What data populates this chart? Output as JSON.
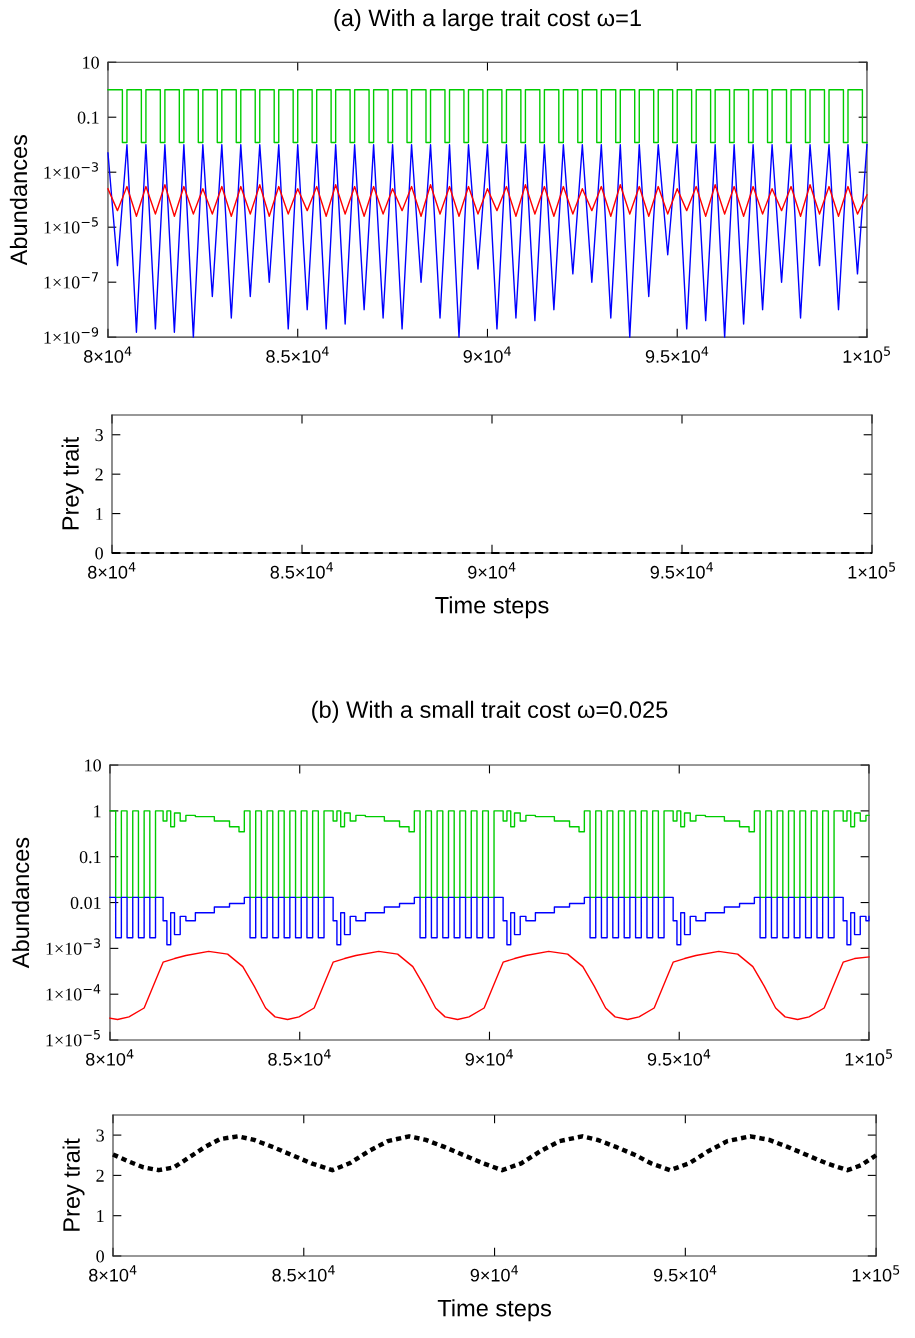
{
  "chart_data": [
    {
      "type": "line",
      "title": "(a) With a large trait cost ω=1",
      "ylabel": "Abundances",
      "log": "y",
      "xlim": [
        80000,
        100000
      ],
      "xticks": [
        {
          "value": 80000,
          "label": "8×10$^{4}$"
        },
        {
          "value": 85000,
          "label": "8.5×10$^{4}$"
        },
        {
          "value": 90000,
          "label": "9×10$^{4}$"
        },
        {
          "value": 95000,
          "label": "9.5×10$^{4}$"
        },
        {
          "value": 100000,
          "label": "1×10$^{5}$"
        }
      ],
      "ylim": [
        1e-09,
        10
      ],
      "yticks": [
        10,
        0.1,
        {
          "value": 0.001,
          "label": "1×10$^{−3}$"
        },
        {
          "value": 1e-05,
          "label": "1×10$^{−5}$"
        },
        {
          "value": 1e-07,
          "label": "1×10$^{−7}$"
        },
        {
          "value": 1e-09,
          "label": "1×10$^{−9}$"
        }
      ],
      "series": [
        {
          "type": "step",
          "color": "#00cc00",
          "x": [
            80000,
            80380,
            80500,
            80880,
            81000,
            81380,
            81500,
            81880,
            82000,
            82380,
            82500,
            82880,
            83000,
            83380,
            83500,
            83880,
            84000,
            84380,
            84500,
            84880,
            85000,
            85380,
            85500,
            85880,
            86000,
            86380,
            86500,
            86880,
            87000,
            87380,
            87500,
            87880,
            88000,
            88380,
            88500,
            88880,
            89000,
            89380,
            89500,
            89880,
            90000,
            90380,
            90500,
            90880,
            91000,
            91380,
            91500,
            91880,
            92000,
            92380,
            92500,
            92880,
            93000,
            93380,
            93500,
            93880,
            94000,
            94380,
            94500,
            94880,
            95000,
            95380,
            95500,
            95880,
            96000,
            96380,
            96500,
            96880,
            97000,
            97380,
            97500,
            97880,
            98000,
            98380,
            98500,
            98880,
            99000,
            99380,
            99500,
            99880,
            100000
          ],
          "values": [
            1,
            0.012,
            1,
            0.012,
            1,
            0.012,
            1,
            0.012,
            1,
            0.012,
            1,
            0.012,
            1,
            0.012,
            1,
            0.012,
            1,
            0.012,
            1,
            0.012,
            1,
            0.012,
            1,
            0.012,
            1,
            0.012,
            1,
            0.012,
            1,
            0.012,
            1,
            0.012,
            1,
            0.012,
            1,
            0.012,
            1,
            0.012,
            1,
            0.012,
            1,
            0.012,
            1,
            0.012,
            1,
            0.012,
            1,
            0.012,
            1,
            0.012,
            1,
            0.012,
            1,
            0.012,
            1,
            0.012,
            1,
            0.012,
            1,
            0.012,
            1,
            0.012,
            1,
            0.012,
            1,
            0.012,
            1,
            0.012,
            1,
            0.012,
            1,
            0.012,
            1,
            0.012,
            1,
            0.012,
            1,
            0.012,
            1,
            0.012,
            0.012
          ]
        },
        {
          "type": "line",
          "color": "#0000ff",
          "x": [
            80000,
            80250,
            80500,
            80750,
            81000,
            81250,
            81500,
            81750,
            82000,
            82250,
            82500,
            82750,
            83000,
            83250,
            83500,
            83750,
            84000,
            84250,
            84500,
            84750,
            85000,
            85250,
            85500,
            85750,
            86000,
            86250,
            86500,
            86750,
            87000,
            87250,
            87500,
            87750,
            88000,
            88250,
            88500,
            88750,
            89000,
            89250,
            89500,
            89750,
            90000,
            90250,
            90500,
            90750,
            91000,
            91250,
            91500,
            91750,
            92000,
            92250,
            92500,
            92750,
            93000,
            93250,
            93500,
            93750,
            94000,
            94250,
            94500,
            94750,
            95000,
            95250,
            95500,
            95750,
            96000,
            96250,
            96500,
            96750,
            97000,
            97250,
            97500,
            97750,
            98000,
            98250,
            98500,
            98750,
            99000,
            99250,
            99500,
            99750,
            100000
          ],
          "values": [
            0.005,
            4e-07,
            0.01,
            1.5e-09,
            0.01,
            2e-09,
            0.01,
            1.5e-09,
            0.01,
            1e-09,
            0.01,
            3e-08,
            0.01,
            5e-09,
            0.01,
            3e-08,
            0.01,
            1e-07,
            0.01,
            2e-09,
            0.01,
            1e-08,
            0.01,
            2e-09,
            0.01,
            3e-09,
            0.01,
            1e-08,
            0.01,
            5e-09,
            0.01,
            2e-09,
            0.01,
            1e-07,
            0.01,
            5e-09,
            0.01,
            1e-09,
            0.01,
            3e-07,
            0.01,
            2e-09,
            0.01,
            5e-09,
            0.01,
            4e-09,
            0.01,
            1e-08,
            0.01,
            2e-07,
            0.01,
            1e-07,
            0.01,
            5e-09,
            0.01,
            1e-09,
            0.01,
            3e-08,
            0.01,
            1e-06,
            0.01,
            2e-09,
            0.01,
            4e-09,
            0.01,
            1e-09,
            0.01,
            3e-09,
            0.01,
            1e-08,
            0.01,
            1e-07,
            0.01,
            5e-09,
            0.01,
            4e-07,
            0.01,
            1e-08,
            0.01,
            2e-07,
            0.01
          ]
        },
        {
          "type": "line",
          "color": "#ff0000",
          "x": [
            80000,
            80250,
            80500,
            80750,
            81000,
            81250,
            81500,
            81750,
            82000,
            82250,
            82500,
            82750,
            83000,
            83250,
            83500,
            83750,
            84000,
            84250,
            84500,
            84750,
            85000,
            85250,
            85500,
            85750,
            86000,
            86250,
            86500,
            86750,
            87000,
            87250,
            87500,
            87750,
            88000,
            88250,
            88500,
            88750,
            89000,
            89250,
            89500,
            89750,
            90000,
            90250,
            90500,
            90750,
            91000,
            91250,
            91500,
            91750,
            92000,
            92250,
            92500,
            92750,
            93000,
            93250,
            93500,
            93750,
            94000,
            94250,
            94500,
            94750,
            95000,
            95250,
            95500,
            95750,
            96000,
            96250,
            96500,
            96750,
            97000,
            97250,
            97500,
            97750,
            98000,
            98250,
            98500,
            98750,
            99000,
            99250,
            99500,
            99750,
            100000
          ],
          "values": [
            0.00025,
            4e-05,
            0.0003,
            2.5e-05,
            0.0003,
            3e-05,
            0.00035,
            2.5e-05,
            0.0003,
            3e-05,
            0.00025,
            3e-05,
            0.0003,
            2.5e-05,
            0.0003,
            3e-05,
            0.00035,
            2.5e-05,
            0.0003,
            3e-05,
            0.00025,
            4e-05,
            0.0003,
            2.5e-05,
            0.00035,
            3e-05,
            0.0003,
            2.5e-05,
            0.0003,
            3e-05,
            0.00025,
            4e-05,
            0.0003,
            2.5e-05,
            0.00035,
            3e-05,
            0.0003,
            2.5e-05,
            0.0003,
            3e-05,
            0.00025,
            4e-05,
            0.0003,
            2.5e-05,
            0.00035,
            3e-05,
            0.0003,
            2.5e-05,
            0.0003,
            3e-05,
            0.00025,
            4e-05,
            0.0003,
            2.5e-05,
            0.00035,
            3e-05,
            0.0003,
            2.5e-05,
            0.0003,
            3e-05,
            0.00025,
            4e-05,
            0.0003,
            2.5e-05,
            0.00035,
            3e-05,
            0.0003,
            2.5e-05,
            0.0003,
            3e-05,
            0.00025,
            4e-05,
            0.0003,
            2.5e-05,
            0.00035,
            3e-05,
            0.0003,
            2.5e-05,
            0.0003,
            3e-05,
            0.00015
          ]
        }
      ]
    },
    {
      "type": "line",
      "ylabel": "Prey trait",
      "xlabel": "Time steps",
      "line_style": "dashed",
      "xlim": [
        80000,
        100000
      ],
      "xticks": [
        {
          "value": 80000,
          "label": "8×10$^{4}$"
        },
        {
          "value": 85000,
          "label": "8.5×10$^{4}$"
        },
        {
          "value": 90000,
          "label": "9×10$^{4}$"
        },
        {
          "value": 95000,
          "label": "9.5×10$^{4}$"
        },
        {
          "value": 100000,
          "label": "1×10$^{5}$"
        }
      ],
      "ylim": [
        0,
        3.5
      ],
      "yticks": [
        0,
        1,
        2,
        3
      ],
      "series": [
        {
          "color": "#000000",
          "x": [
            80000,
            100000
          ],
          "values": [
            0,
            0
          ]
        }
      ]
    },
    {
      "type": "line",
      "title": "(b) With a small trait cost ω=0.025",
      "ylabel": "Abundances",
      "log": "y",
      "xlim": [
        80000,
        100000
      ],
      "xticks": [
        {
          "value": 80000,
          "label": "8×10$^{4}$"
        },
        {
          "value": 85000,
          "label": "8.5×10$^{4}$"
        },
        {
          "value": 90000,
          "label": "9×10$^{4}$"
        },
        {
          "value": 95000,
          "label": "9.5×10$^{4}$"
        },
        {
          "value": 100000,
          "label": "1×10$^{5}$"
        }
      ],
      "ylim": [
        1e-05,
        10
      ],
      "yticks": [
        10,
        1,
        0.1,
        0.01,
        {
          "value": 0.001,
          "label": "1×10$^{−3}$"
        },
        {
          "value": 0.0001,
          "label": "1×10$^{−4}$"
        },
        {
          "value": 1e-05,
          "label": "1×10$^{−5}$"
        }
      ],
      "series": [
        {
          "type": "step",
          "color": "#00cc00",
          "x": [
            80000,
            80150,
            80300,
            80450,
            80600,
            80750,
            80900,
            81050,
            81200,
            81400,
            81500,
            81600,
            81700,
            81850,
            82000,
            82250,
            82750,
            83150,
            83400,
            83540,
            83690,
            83840,
            83990,
            84140,
            84290,
            84440,
            84590,
            84740,
            84890,
            85040,
            85190,
            85340,
            85490,
            85640,
            85880,
            85980,
            86080,
            86180,
            86330,
            86480,
            86730,
            87230,
            87630,
            87880,
            88020,
            88170,
            88320,
            88470,
            88620,
            88770,
            88920,
            89070,
            89220,
            89370,
            89520,
            89670,
            89820,
            89970,
            90120,
            90360,
            90460,
            90560,
            90660,
            90810,
            90960,
            91210,
            91710,
            92110,
            92360,
            92500,
            92650,
            92800,
            92950,
            93100,
            93250,
            93400,
            93550,
            93700,
            93850,
            94000,
            94150,
            94300,
            94450,
            94600,
            94840,
            94940,
            95040,
            95140,
            95290,
            95440,
            95690,
            96190,
            96590,
            96840,
            96980,
            97130,
            97280,
            97430,
            97580,
            97730,
            97880,
            98030,
            98180,
            98330,
            98480,
            98630,
            98780,
            98930,
            99080,
            99320,
            99420,
            99520,
            99620,
            99770,
            99920,
            100000
          ],
          "values": [
            1,
            0.013,
            1,
            0.013,
            1,
            0.013,
            1,
            0.013,
            1,
            0.6,
            1,
            0.45,
            0.9,
            0.6,
            0.8,
            0.75,
            0.6,
            0.45,
            0.35,
            1,
            0.013,
            1,
            0.013,
            1,
            0.013,
            1,
            0.013,
            1,
            0.013,
            1,
            0.013,
            1,
            0.013,
            1,
            0.6,
            1,
            0.45,
            0.9,
            0.6,
            0.8,
            0.75,
            0.6,
            0.45,
            0.35,
            1,
            0.013,
            1,
            0.013,
            1,
            0.013,
            1,
            0.013,
            1,
            0.013,
            1,
            0.013,
            1,
            0.013,
            1,
            0.6,
            1,
            0.45,
            0.9,
            0.6,
            0.8,
            0.75,
            0.6,
            0.45,
            0.35,
            1,
            0.013,
            1,
            0.013,
            1,
            0.013,
            1,
            0.013,
            1,
            0.013,
            1,
            0.013,
            1,
            0.013,
            1,
            0.6,
            1,
            0.45,
            0.9,
            0.6,
            0.8,
            0.75,
            0.6,
            0.45,
            0.35,
            1,
            0.013,
            1,
            0.013,
            1,
            0.013,
            1,
            0.013,
            1,
            0.013,
            1,
            0.013,
            1,
            0.013,
            1,
            0.6,
            1,
            0.45,
            0.9,
            0.6,
            0.8,
            0.8
          ]
        },
        {
          "type": "step",
          "color": "#0000ff",
          "x": [
            80000,
            80150,
            80300,
            80450,
            80600,
            80750,
            80900,
            81050,
            81200,
            81400,
            81500,
            81600,
            81700,
            81850,
            82000,
            82250,
            82750,
            83150,
            83400,
            83540,
            83690,
            83840,
            83990,
            84140,
            84290,
            84440,
            84590,
            84740,
            84890,
            85040,
            85190,
            85340,
            85490,
            85640,
            85880,
            85980,
            86080,
            86180,
            86330,
            86480,
            86730,
            87230,
            87630,
            87880,
            88020,
            88170,
            88320,
            88470,
            88620,
            88770,
            88920,
            89070,
            89220,
            89370,
            89520,
            89670,
            89820,
            89970,
            90120,
            90360,
            90460,
            90560,
            90660,
            90810,
            90960,
            91210,
            91710,
            92110,
            92360,
            92500,
            92650,
            92800,
            92950,
            93100,
            93250,
            93400,
            93550,
            93700,
            93850,
            94000,
            94150,
            94300,
            94450,
            94600,
            94840,
            94940,
            95040,
            95140,
            95290,
            95440,
            95690,
            96190,
            96590,
            96840,
            96980,
            97130,
            97280,
            97430,
            97580,
            97730,
            97880,
            98030,
            98180,
            98330,
            98480,
            98630,
            98780,
            98930,
            99080,
            99320,
            99420,
            99520,
            99620,
            99770,
            99920,
            100000
          ],
          "values": [
            0.013,
            0.0017,
            0.013,
            0.0017,
            0.013,
            0.0017,
            0.013,
            0.0017,
            0.013,
            0.004,
            0.0012,
            0.006,
            0.002,
            0.005,
            0.004,
            0.006,
            0.008,
            0.0095,
            0.0095,
            0.013,
            0.0017,
            0.013,
            0.0017,
            0.013,
            0.0017,
            0.013,
            0.0017,
            0.013,
            0.0017,
            0.013,
            0.0017,
            0.013,
            0.0017,
            0.013,
            0.004,
            0.0012,
            0.006,
            0.002,
            0.005,
            0.004,
            0.006,
            0.008,
            0.0095,
            0.0095,
            0.013,
            0.0017,
            0.013,
            0.0017,
            0.013,
            0.0017,
            0.013,
            0.0017,
            0.013,
            0.0017,
            0.013,
            0.0017,
            0.013,
            0.0017,
            0.013,
            0.004,
            0.0012,
            0.006,
            0.002,
            0.005,
            0.004,
            0.006,
            0.008,
            0.0095,
            0.0095,
            0.013,
            0.0017,
            0.013,
            0.0017,
            0.013,
            0.0017,
            0.013,
            0.0017,
            0.013,
            0.0017,
            0.013,
            0.0017,
            0.013,
            0.0017,
            0.013,
            0.004,
            0.0012,
            0.006,
            0.002,
            0.005,
            0.004,
            0.006,
            0.008,
            0.0095,
            0.0095,
            0.013,
            0.0017,
            0.013,
            0.0017,
            0.013,
            0.0017,
            0.013,
            0.0017,
            0.013,
            0.0017,
            0.013,
            0.0017,
            0.013,
            0.0017,
            0.013,
            0.004,
            0.0012,
            0.006,
            0.002,
            0.005,
            0.004,
            0.005
          ]
        },
        {
          "type": "line",
          "color": "#ff0000",
          "x": [
            80000,
            80200,
            80500,
            80900,
            81200,
            81400,
            81700,
            82000,
            82600,
            83100,
            83500,
            83800,
            84100,
            84350,
            84680,
            84980,
            85380,
            85680,
            85880,
            86180,
            86480,
            87080,
            87580,
            87980,
            88280,
            88580,
            88830,
            89160,
            89460,
            89860,
            90160,
            90360,
            90660,
            90960,
            91560,
            92060,
            92460,
            92760,
            93060,
            93310,
            93640,
            93940,
            94340,
            94640,
            94840,
            95140,
            95440,
            96040,
            96540,
            96940,
            97240,
            97540,
            97790,
            98120,
            98420,
            98820,
            99120,
            99320,
            99620,
            100000
          ],
          "values": [
            3e-05,
            2.8e-05,
            3.2e-05,
            5e-05,
            0.0002,
            0.0005,
            0.0006,
            0.0007,
            0.00086,
            0.00075,
            0.0004,
            0.00015,
            5e-05,
            3.2e-05,
            2.8e-05,
            3.2e-05,
            5e-05,
            0.0002,
            0.0005,
            0.0006,
            0.0007,
            0.00086,
            0.00075,
            0.0004,
            0.00015,
            5e-05,
            3.2e-05,
            2.8e-05,
            3.2e-05,
            5e-05,
            0.0002,
            0.0005,
            0.0006,
            0.0007,
            0.00086,
            0.00075,
            0.0004,
            0.00015,
            5e-05,
            3.2e-05,
            2.8e-05,
            3.2e-05,
            5e-05,
            0.0002,
            0.0005,
            0.0006,
            0.0007,
            0.00086,
            0.00075,
            0.0004,
            0.00015,
            5e-05,
            3.2e-05,
            2.8e-05,
            3.2e-05,
            5e-05,
            0.0002,
            0.0005,
            0.0006,
            0.00065
          ]
        }
      ]
    },
    {
      "type": "line",
      "ylabel": "Prey trait",
      "xlabel": "Time steps",
      "line_style": "dotted",
      "xlim": [
        80000,
        100000
      ],
      "xticks": [
        {
          "value": 80000,
          "label": "8×10$^{4}$"
        },
        {
          "value": 85000,
          "label": "8.5×10$^{4}$"
        },
        {
          "value": 90000,
          "label": "9×10$^{4}$"
        },
        {
          "value": 95000,
          "label": "9.5×10$^{4}$"
        },
        {
          "value": 100000,
          "label": "1×10$^{5}$"
        }
      ],
      "ylim": [
        0,
        3.5
      ],
      "yticks": [
        0,
        1,
        2,
        3
      ],
      "series": [
        {
          "color": "#000000",
          "x": [
            80000,
            80400,
            80800,
            81200,
            81600,
            82000,
            82400,
            82800,
            83280,
            83700,
            84200,
            84700,
            85200,
            85750,
            86200,
            86700,
            87200,
            87760,
            88200,
            88700,
            89200,
            89700,
            90200,
            90700,
            91200,
            91700,
            92300,
            92700,
            93200,
            93700,
            94100,
            94600,
            95100,
            95600,
            96100,
            96700,
            97200,
            97700,
            98200,
            98700,
            99250,
            99600,
            100000
          ],
          "values": [
            2.52,
            2.35,
            2.2,
            2.13,
            2.2,
            2.45,
            2.7,
            2.9,
            2.97,
            2.88,
            2.7,
            2.5,
            2.3,
            2.13,
            2.3,
            2.6,
            2.85,
            2.97,
            2.88,
            2.7,
            2.5,
            2.3,
            2.13,
            2.3,
            2.6,
            2.85,
            2.97,
            2.88,
            2.7,
            2.5,
            2.3,
            2.13,
            2.3,
            2.6,
            2.85,
            2.97,
            2.88,
            2.7,
            2.5,
            2.3,
            2.13,
            2.25,
            2.5
          ]
        }
      ]
    }
  ]
}
